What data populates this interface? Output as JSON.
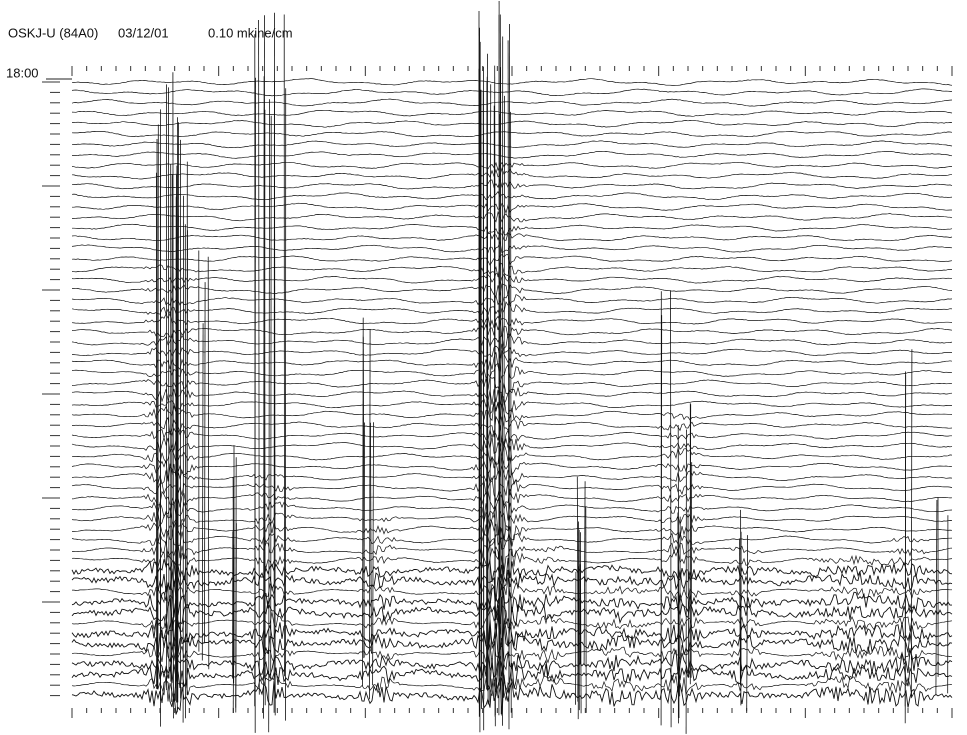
{
  "header": {
    "station": "OSKJ-U (84A0)",
    "date": "03/12/01",
    "scale": "0.10 mkine/cm"
  },
  "record": {
    "start_time": "18:00"
  }
}
